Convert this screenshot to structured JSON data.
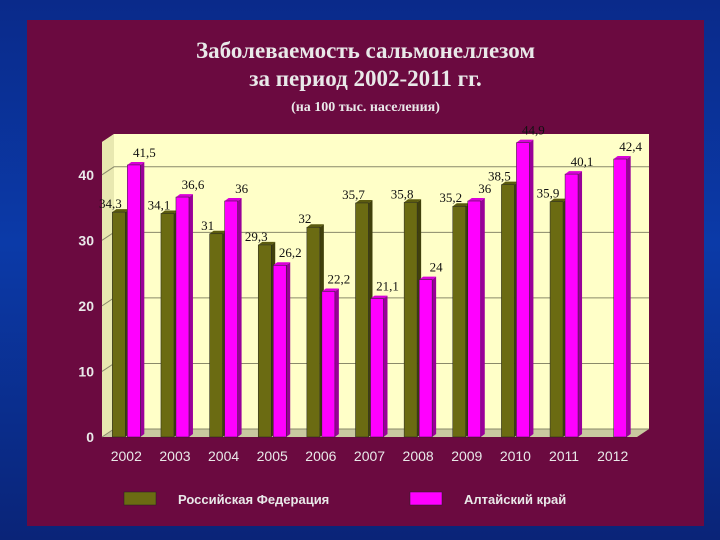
{
  "colors": {
    "background_outer": "#0b3aa8",
    "slide_background": "#6b0a40",
    "plot_background": "#ffffc8",
    "plot_wall": "#e8e8b0",
    "series_rf": "#6b6b12",
    "series_altai": "#ff00ff",
    "text": "#e9e9e9",
    "label_dark": "#111111"
  },
  "chart_data": {
    "type": "bar",
    "title": "Заболеваемость сальмонеллезом за период 2002-2011 гг.",
    "title_lines": [
      "Заболеваемость сальмонеллезом",
      "за период 2002-2011 гг."
    ],
    "subtitle": "(на 100 тыс. населения)",
    "xlabel": "",
    "ylabel": "",
    "ylim": [
      0,
      45
    ],
    "yticks": [
      0,
      10,
      20,
      30,
      40
    ],
    "grid": true,
    "legend_placement": "bottom",
    "categories": [
      "2002",
      "2003",
      "2004",
      "2005",
      "2006",
      "2007",
      "2008",
      "2009",
      "2010",
      "2011",
      "2012"
    ],
    "series": [
      {
        "name": "Российская Федерация",
        "values": [
          34.3,
          34.1,
          31,
          29.3,
          32,
          35.7,
          35.8,
          35.2,
          38.5,
          35.9,
          null
        ],
        "labels": [
          "34,3",
          "34,1",
          "31",
          "29,3",
          "32",
          "35,7",
          "35,8",
          "35,2",
          "38,5",
          "35,9",
          ""
        ]
      },
      {
        "name": "Алтайский край",
        "values": [
          41.5,
          36.6,
          36,
          26.2,
          22.2,
          21.1,
          24,
          36,
          44.9,
          40.1,
          42.4
        ],
        "labels": [
          "41,5",
          "36,6",
          "36",
          "26,2",
          "22,2",
          "21,1",
          "24",
          "36",
          "44,9",
          "40,1",
          "42,4"
        ]
      }
    ]
  }
}
